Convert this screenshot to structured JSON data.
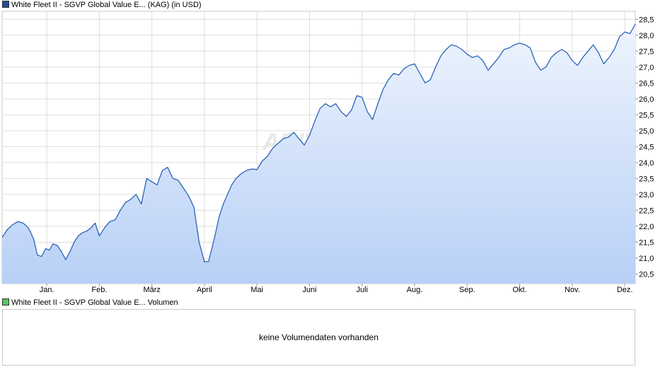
{
  "price_legend": {
    "label": "White Fleet II - SGVP Global Value E... (KAG) (in USD)",
    "color": "#1f4e9c"
  },
  "volume_legend": {
    "label": "White Fleet II - SGVP Global Value E... Volumen",
    "color": "#5cc55c"
  },
  "volume_panel": {
    "message": "keine Volumendaten vorhanden"
  },
  "watermark": "ARIVA.DE",
  "colors": {
    "line": "#2a63b8",
    "fill_top": "#eef4fd",
    "fill_bottom": "#b8d0f6",
    "grid": "#dddddd"
  },
  "chart_data": {
    "type": "area",
    "xlabel": "",
    "ylabel": "",
    "months": [
      "Jan.",
      "Feb.",
      "März",
      "April",
      "Mai",
      "Juni",
      "Juli",
      "Aug.",
      "Sep.",
      "Okt.",
      "Nov.",
      "Dez."
    ],
    "y_ticks": [
      "20,5",
      "21,0",
      "21,5",
      "22,0",
      "22,5",
      "23,0",
      "23,5",
      "24,0",
      "24,5",
      "25,0",
      "25,5",
      "26,0",
      "26,5",
      "27,0",
      "27,5",
      "28,0",
      "28,5"
    ],
    "ylim": [
      20.2,
      28.75
    ],
    "x_range": [
      -0.85,
      11.2
    ],
    "grid": true,
    "series": [
      {
        "x": [
          -0.85,
          -0.75,
          -0.65,
          -0.55,
          -0.45,
          -0.35,
          -0.25,
          -0.18,
          -0.1,
          -0.02,
          0.05,
          0.12,
          0.2,
          0.28,
          0.36,
          0.44,
          0.52,
          0.6,
          0.68,
          0.76,
          0.84,
          0.92,
          1.0,
          1.1,
          1.2,
          1.3,
          1.4,
          1.5,
          1.6,
          1.7,
          1.8,
          1.9,
          2.0,
          2.1,
          2.2,
          2.3,
          2.4,
          2.5,
          2.6,
          2.7,
          2.8,
          2.9,
          3.0,
          3.08,
          3.14,
          3.2,
          3.28,
          3.36,
          3.44,
          3.52,
          3.6,
          3.7,
          3.8,
          3.9,
          4.0,
          4.1,
          4.2,
          4.3,
          4.4,
          4.5,
          4.6,
          4.7,
          4.8,
          4.9,
          5.0,
          5.1,
          5.2,
          5.3,
          5.4,
          5.5,
          5.6,
          5.7,
          5.8,
          5.9,
          6.0,
          6.1,
          6.2,
          6.3,
          6.4,
          6.5,
          6.6,
          6.7,
          6.8,
          6.9,
          7.0,
          7.1,
          7.2,
          7.3,
          7.4,
          7.5,
          7.6,
          7.7,
          7.8,
          7.9,
          8.0,
          8.1,
          8.2,
          8.3,
          8.4,
          8.5,
          8.6,
          8.7,
          8.8,
          8.9,
          9.0,
          9.1,
          9.2,
          9.3,
          9.4,
          9.5,
          9.6,
          9.7,
          9.8,
          9.9,
          10.0,
          10.1,
          10.2,
          10.3,
          10.4,
          10.5,
          10.6,
          10.7,
          10.8,
          10.9,
          11.0,
          11.1,
          11.2
        ],
        "values": [
          21.65,
          21.9,
          22.05,
          22.15,
          22.1,
          21.95,
          21.6,
          21.1,
          21.05,
          21.3,
          21.25,
          21.45,
          21.4,
          21.2,
          20.95,
          21.2,
          21.5,
          21.7,
          21.8,
          21.85,
          21.95,
          22.1,
          21.7,
          21.95,
          22.15,
          22.2,
          22.5,
          22.75,
          22.85,
          23.0,
          22.7,
          23.5,
          23.4,
          23.3,
          23.75,
          23.85,
          23.5,
          23.45,
          23.2,
          22.95,
          22.6,
          21.5,
          20.88,
          20.9,
          21.3,
          21.7,
          22.3,
          22.7,
          23.0,
          23.3,
          23.5,
          23.65,
          23.75,
          23.8,
          23.78,
          24.05,
          24.2,
          24.45,
          24.6,
          24.75,
          24.8,
          24.95,
          24.75,
          24.55,
          24.85,
          25.3,
          25.7,
          25.85,
          25.75,
          25.85,
          25.6,
          25.45,
          25.65,
          26.1,
          26.05,
          25.6,
          25.35,
          25.85,
          26.3,
          26.6,
          26.8,
          26.75,
          26.95,
          27.05,
          27.1,
          26.8,
          26.5,
          26.6,
          27.0,
          27.35,
          27.55,
          27.7,
          27.65,
          27.55,
          27.4,
          27.3,
          27.35,
          27.2,
          26.9,
          27.1,
          27.3,
          27.55,
          27.6,
          27.7,
          27.75,
          27.7,
          27.6,
          27.15,
          26.9,
          27.0,
          27.3,
          27.45,
          27.55,
          27.45,
          27.2,
          27.05,
          27.3,
          27.5,
          27.7,
          27.45,
          27.1,
          27.3,
          27.55,
          27.95,
          28.1,
          28.05,
          28.35
        ]
      }
    ]
  }
}
